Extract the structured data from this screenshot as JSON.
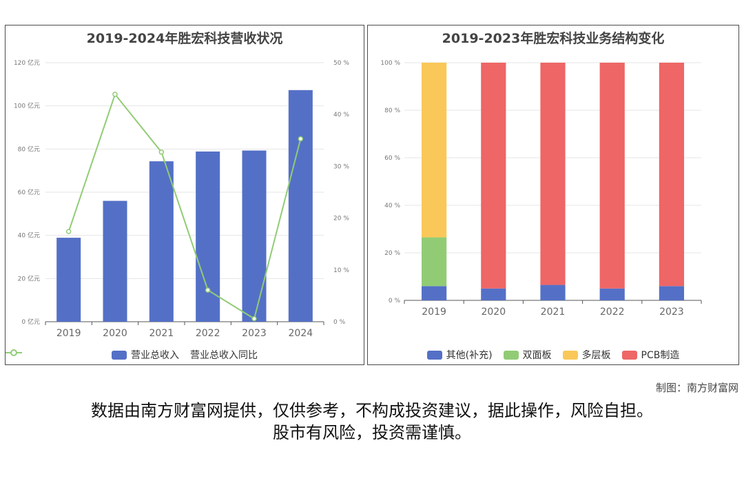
{
  "credit": "制图：南方财富网",
  "disclaimer_line1": "数据由南方财富网提供，仅供参考，不构成投资建议，据此操作，风险自担。",
  "disclaimer_line2": "股市有风险，投资需谨慎。",
  "chart_data": [
    {
      "type": "bar",
      "title": "2019-2024年胜宏科技营收状况",
      "categories": [
        "2019",
        "2020",
        "2021",
        "2022",
        "2023",
        "2024"
      ],
      "y_ticks": [
        "0 亿元",
        "20 亿元",
        "40 亿元",
        "60 亿元",
        "80 亿元",
        "100 亿元",
        "120 亿元"
      ],
      "y2_ticks": [
        "0 %",
        "10 %",
        "20 %",
        "30 %",
        "40 %",
        "50 %"
      ],
      "ylim": [
        0,
        120
      ],
      "y2lim": [
        0,
        50
      ],
      "series": [
        {
          "name": "营业总收入",
          "kind": "bar",
          "axis": "left",
          "color": "#5470c6",
          "values": [
            38.9,
            55.99,
            74.32,
            78.85,
            79.31,
            107.3
          ]
        },
        {
          "name": "营业总收入同比",
          "kind": "line",
          "axis": "right",
          "color": "#91cc75",
          "values": [
            17.4,
            43.9,
            32.74,
            6.1,
            0.58,
            35.3
          ]
        }
      ],
      "grid": true,
      "legend": "bottom"
    },
    {
      "type": "bar",
      "stacked": true,
      "title": "2019-2023年胜宏科技业务结构变化",
      "categories": [
        "2019",
        "2020",
        "2021",
        "2022",
        "2023"
      ],
      "y_ticks": [
        "0 %",
        "20 %",
        "40 %",
        "60 %",
        "80 %",
        "100 %"
      ],
      "ylim": [
        0,
        100
      ],
      "series": [
        {
          "name": "其他(补充)",
          "color": "#5470c6",
          "values": [
            6,
            5,
            6.5,
            5,
            6
          ]
        },
        {
          "name": "双面板",
          "color": "#91cc75",
          "values": [
            20.5,
            0,
            0,
            0,
            0
          ]
        },
        {
          "name": "多层板",
          "color": "#fac858",
          "values": [
            73.5,
            0,
            0,
            0,
            0
          ]
        },
        {
          "name": "PCB制造",
          "color": "#ee6666",
          "values": [
            0,
            95,
            93.5,
            95,
            94
          ]
        }
      ],
      "grid": true,
      "legend": "bottom"
    }
  ]
}
